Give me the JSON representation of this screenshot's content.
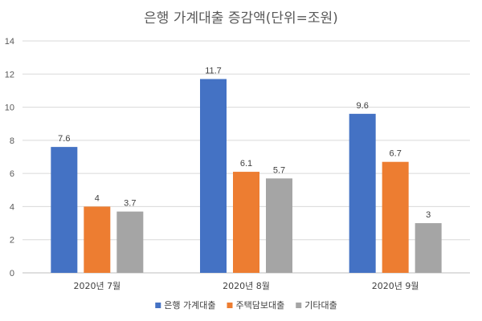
{
  "chart_data": {
    "type": "bar",
    "title": "은행 가계대출 증감액(단위=조원)",
    "categories": [
      "2020년 7월",
      "2020년 8월",
      "2020년 9월"
    ],
    "series": [
      {
        "name": "은행 가계대출",
        "color": "#4472C4",
        "values": [
          7.6,
          11.7,
          9.6
        ]
      },
      {
        "name": "주택담보대출",
        "color": "#ED7D31",
        "values": [
          4,
          6.1,
          6.7
        ]
      },
      {
        "name": "기타대출",
        "color": "#A5A5A5",
        "values": [
          3.7,
          5.7,
          3
        ]
      }
    ],
    "ylim": [
      0,
      14
    ],
    "yticks": [
      0,
      2,
      4,
      6,
      8,
      10,
      12,
      14
    ],
    "grid": true,
    "legend": "bottom",
    "xlabel": "",
    "ylabel": ""
  }
}
